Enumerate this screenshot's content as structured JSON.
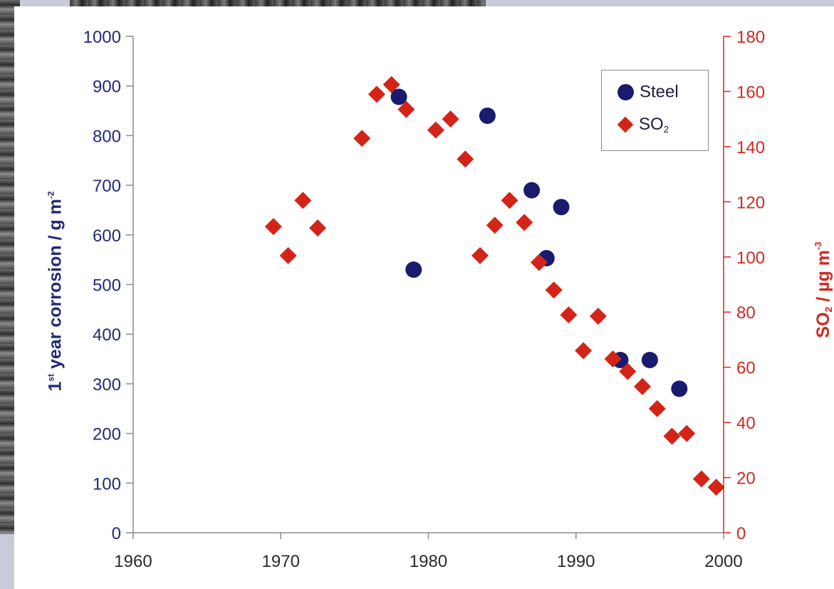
{
  "chart_data": {
    "type": "scatter",
    "x_axis": {
      "range": [
        1960,
        2000
      ],
      "ticks": [
        "1960",
        "1970",
        "1980",
        "1990",
        "2000"
      ]
    },
    "y_axis_left": {
      "label_prefix": "1",
      "label_sup": "st",
      "label_main": " year corrosion / g m",
      "label_unit_sup": "-2",
      "range": [
        0,
        1000
      ],
      "ticks": [
        "0",
        "100",
        "200",
        "300",
        "400",
        "500",
        "600",
        "700",
        "800",
        "900",
        "1000"
      ]
    },
    "y_axis_right": {
      "label_base": "SO",
      "label_sub": "2",
      "label_main": " / µg m",
      "label_unit_sup": "-3",
      "range": [
        0,
        180
      ],
      "ticks": [
        "0",
        "20",
        "40",
        "60",
        "80",
        "100",
        "120",
        "140",
        "160",
        "180"
      ]
    },
    "legend": {
      "position": "top-right",
      "steel": "Steel",
      "so2_base": "SO",
      "so2_sub": "2"
    },
    "series": [
      {
        "name": "Steel",
        "axis": "left",
        "marker": "circle",
        "color": "#1a1a6e",
        "points": [
          [
            1978,
            878
          ],
          [
            1979,
            530
          ],
          [
            1984,
            840
          ],
          [
            1987,
            690
          ],
          [
            1988,
            553
          ],
          [
            1989,
            656
          ],
          [
            1993,
            348
          ],
          [
            1995,
            348
          ],
          [
            1997,
            290
          ]
        ]
      },
      {
        "name": "SO2",
        "axis": "right",
        "marker": "diamond",
        "color": "#d42418",
        "points": [
          [
            1969.5,
            111
          ],
          [
            1970.5,
            100.5
          ],
          [
            1971.5,
            120.5
          ],
          [
            1972.5,
            110.5
          ],
          [
            1975.5,
            143
          ],
          [
            1976.5,
            159
          ],
          [
            1977.5,
            162.5
          ],
          [
            1978.5,
            153.5
          ],
          [
            1980.5,
            146
          ],
          [
            1981.5,
            150
          ],
          [
            1982.5,
            135.5
          ],
          [
            1983.5,
            100.5
          ],
          [
            1984.5,
            111.5
          ],
          [
            1985.5,
            120.5
          ],
          [
            1986.5,
            112.5
          ],
          [
            1987.5,
            98
          ],
          [
            1988.5,
            88
          ],
          [
            1989.5,
            79
          ],
          [
            1990.5,
            66
          ],
          [
            1991.5,
            78.5
          ],
          [
            1992.5,
            63
          ],
          [
            1993.5,
            58.5
          ],
          [
            1994.5,
            53
          ],
          [
            1995.5,
            45
          ],
          [
            1996.5,
            35
          ],
          [
            1997.5,
            36
          ],
          [
            1998.5,
            19.5
          ],
          [
            1999.5,
            16.5
          ]
        ]
      }
    ]
  }
}
